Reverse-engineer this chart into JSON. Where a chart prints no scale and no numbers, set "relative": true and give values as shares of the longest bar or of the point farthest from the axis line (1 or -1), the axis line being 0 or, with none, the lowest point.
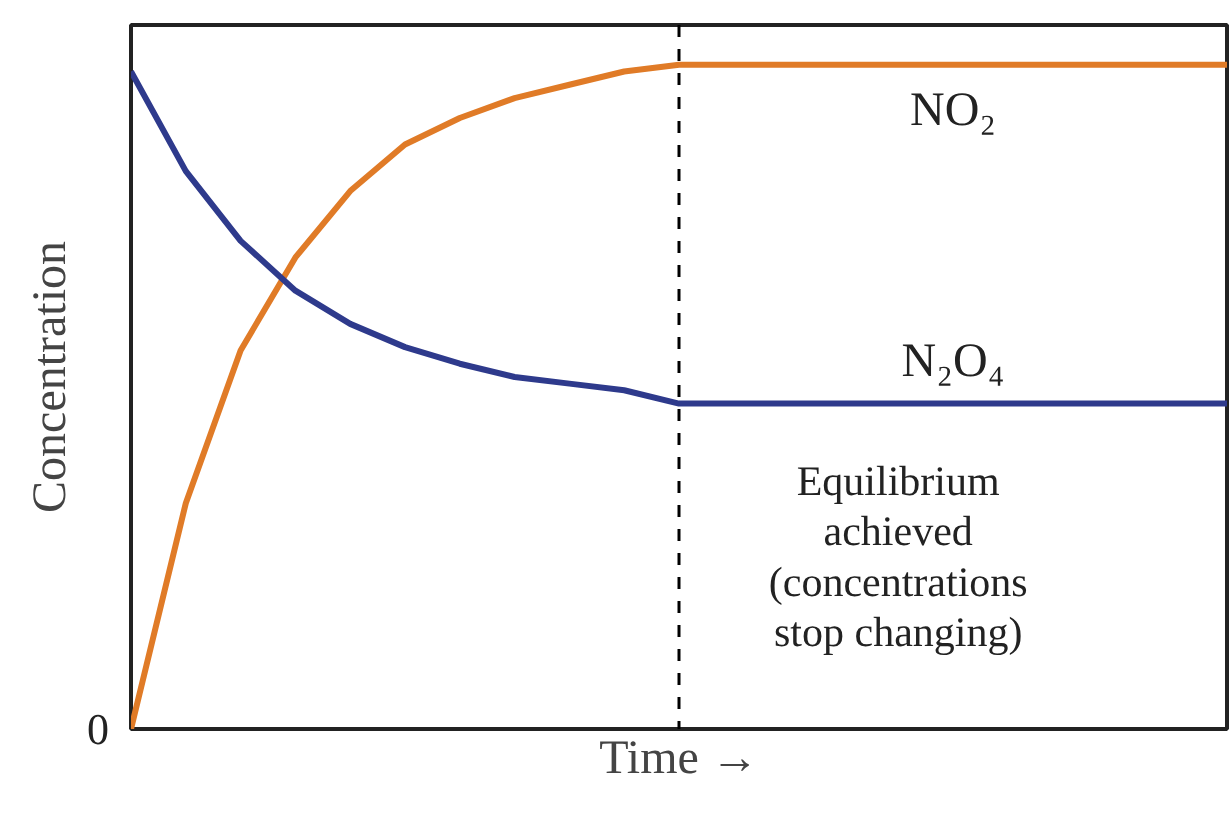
{
  "chart_data": {
    "type": "line",
    "relative": true,
    "xlabel": "Time →",
    "ylabel": "Concentration",
    "categories": [
      null,
      null,
      null,
      null,
      null,
      null,
      null,
      null,
      null,
      null,
      null,
      null,
      null,
      null,
      null,
      null,
      null,
      null,
      null,
      null,
      null
    ],
    "series": [
      {
        "name": "NO₂",
        "color": "#e07b27",
        "values": [
          0,
          0.34,
          0.57,
          0.71,
          0.81,
          0.88,
          0.92,
          0.95,
          0.97,
          0.99,
          1,
          1,
          1,
          1,
          1,
          1,
          1,
          1,
          1,
          1,
          1
        ]
      },
      {
        "name": "N₂O₄",
        "color": "#2e3a8c",
        "values": [
          0.99,
          0.84,
          0.735,
          0.66,
          0.61,
          0.575,
          0.55,
          0.53,
          0.52,
          0.51,
          0.49,
          0.49,
          0.49,
          0.49,
          0.49,
          0.49,
          0.49,
          0.49,
          0.49,
          0.49,
          0.49
        ]
      }
    ],
    "annotations": [
      "0",
      "Equilibrium\nachieved\n(concentrations\nstop changing)"
    ],
    "legend": false,
    "marker": "none",
    "line_style": "solid"
  }
}
